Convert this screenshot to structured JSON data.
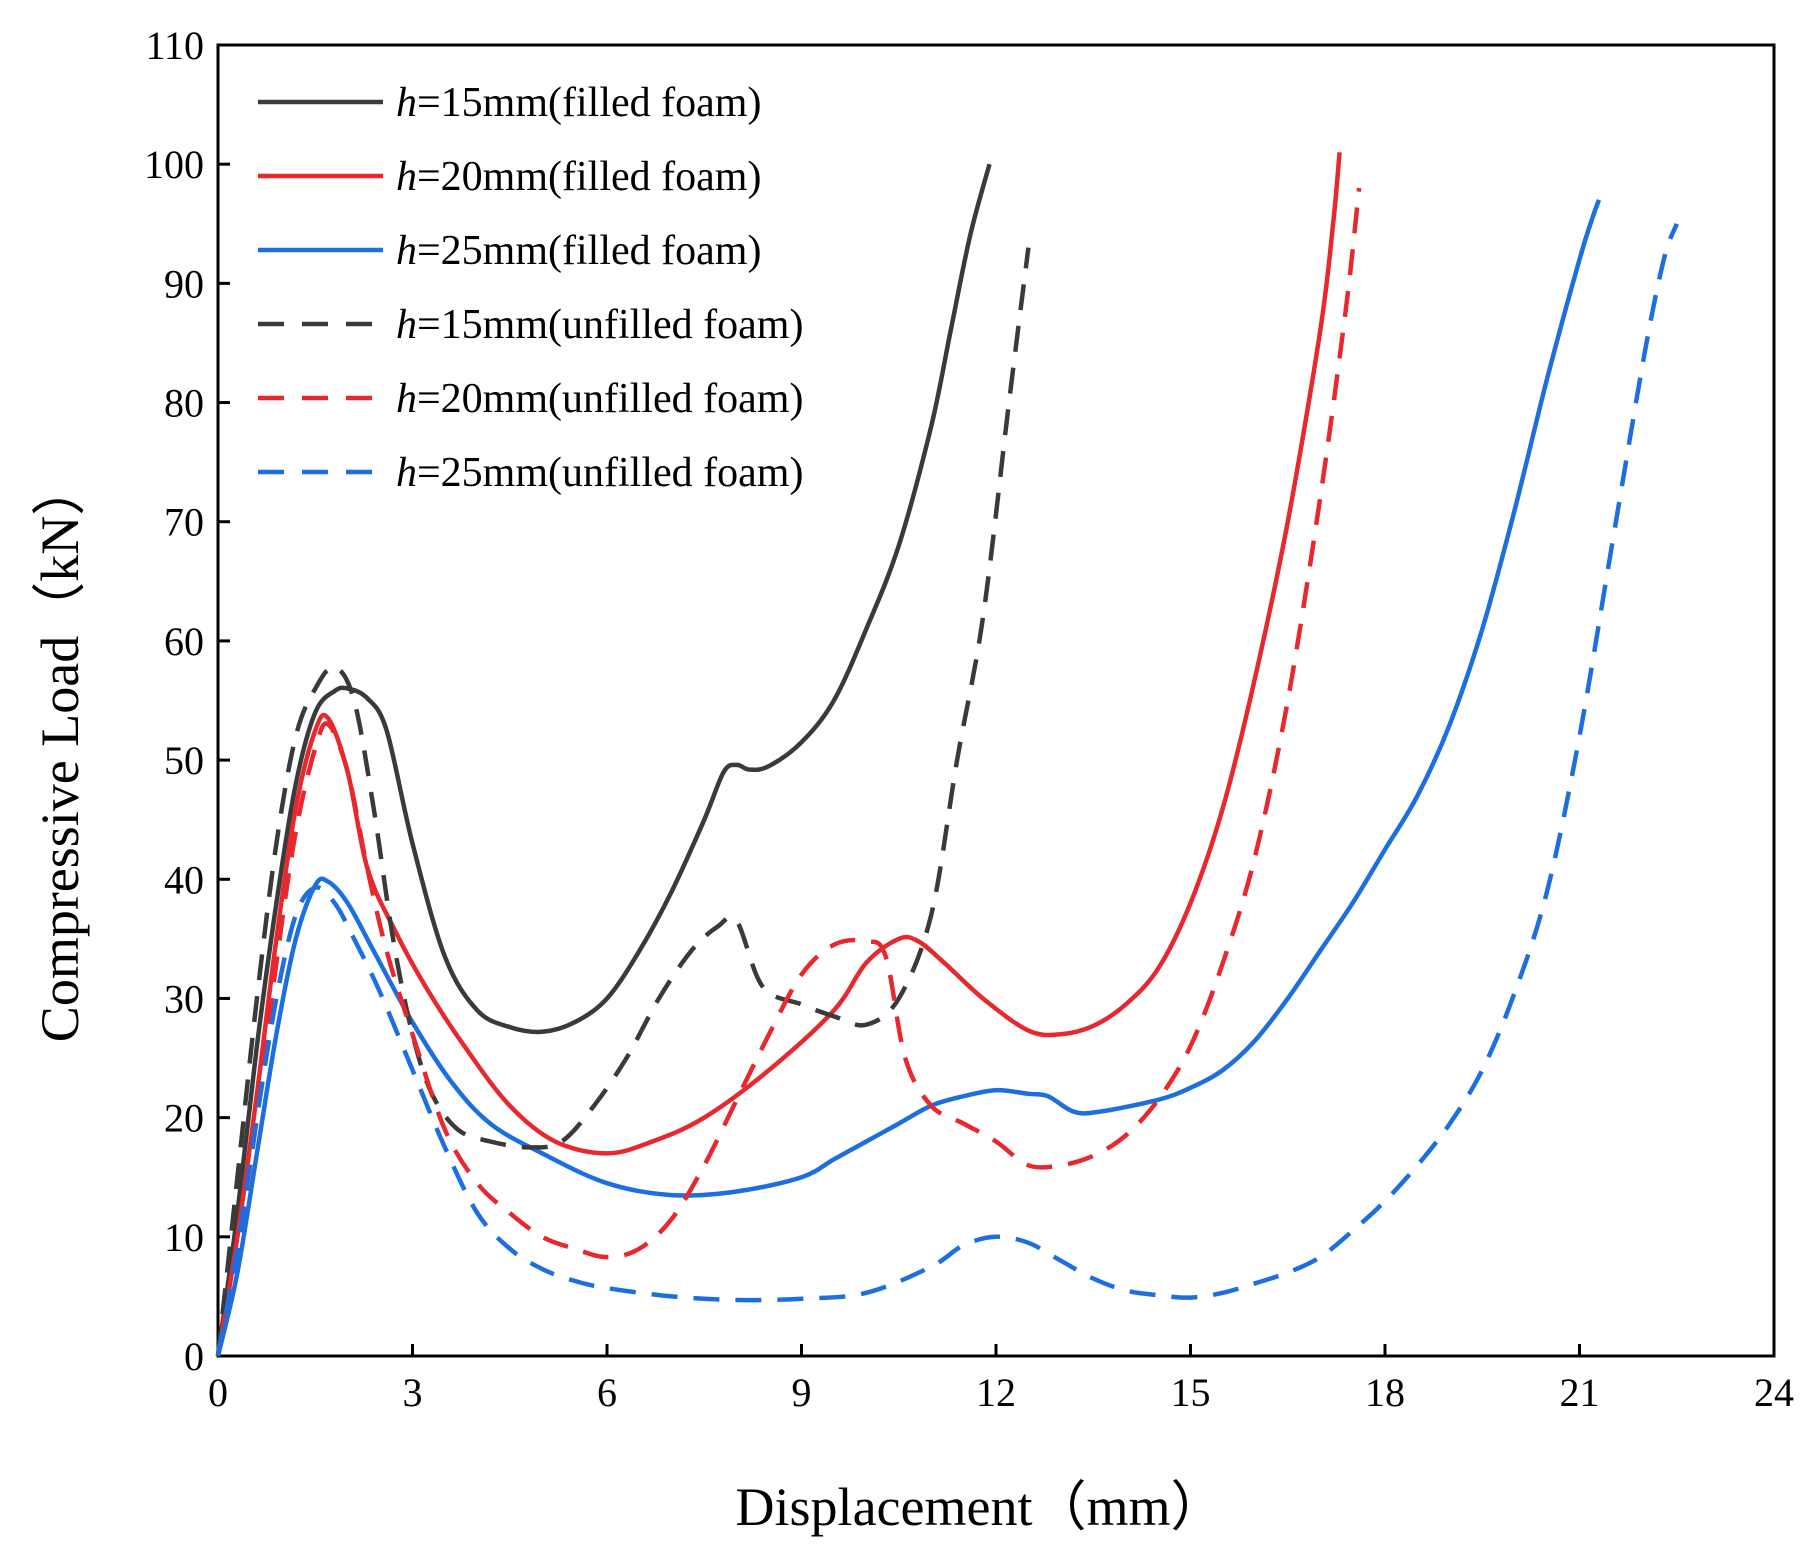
{
  "chart_data": {
    "type": "line",
    "title": "",
    "xlabel": "Displacement（mm）",
    "ylabel": "Compressive Load（kN）",
    "xlim": [
      0,
      24
    ],
    "ylim": [
      0,
      110
    ],
    "xticks": [
      0,
      3,
      6,
      9,
      12,
      15,
      18,
      21,
      24
    ],
    "yticks": [
      0,
      10,
      20,
      30,
      40,
      50,
      60,
      70,
      80,
      90,
      100,
      110
    ],
    "grid": false,
    "legend_position": "top-left",
    "series": [
      {
        "name": "h=15mm(filled foam)",
        "legend_var": "h",
        "legend_rest": "=15mm(filled foam)",
        "color": "#3a3a3a",
        "dash": "solid",
        "x": [
          0,
          0.3,
          0.6,
          0.9,
          1.2,
          1.5,
          1.8,
          2.0,
          2.3,
          2.6,
          3.0,
          3.5,
          4.0,
          4.5,
          5.0,
          5.5,
          6.0,
          6.5,
          7.0,
          7.5,
          7.8,
          8.0,
          8.2,
          8.5,
          9.0,
          9.5,
          10.0,
          10.5,
          11.0,
          11.3,
          11.6,
          11.9
        ],
        "y": [
          0,
          12,
          26,
          38,
          48,
          54,
          55.8,
          56,
          55.2,
          52.5,
          43,
          33.5,
          29,
          27.6,
          27.2,
          28,
          30,
          34,
          39,
          45,
          49,
          49.6,
          49.2,
          49.5,
          51.5,
          55,
          61,
          68,
          78,
          86,
          94,
          100
        ]
      },
      {
        "name": "h=20mm(filled foam)",
        "legend_var": "h",
        "legend_rest": "=20mm(filled foam)",
        "color": "#e8282f",
        "dash": "solid",
        "x": [
          0,
          0.3,
          0.6,
          0.9,
          1.2,
          1.5,
          1.7,
          2.0,
          2.3,
          2.7,
          3.2,
          3.8,
          4.5,
          5.2,
          6.0,
          6.7,
          7.5,
          8.5,
          9.5,
          10.0,
          10.5,
          10.8,
          11.2,
          11.8,
          12.5,
          13.0,
          13.5,
          14.0,
          14.5,
          15.0,
          15.5,
          16.0,
          16.5,
          17.0,
          17.2,
          17.3
        ],
        "y": [
          0,
          10,
          22,
          35,
          46,
          52.5,
          53.5,
          49,
          41,
          36,
          31,
          26,
          21,
          18,
          17,
          18,
          20,
          24,
          29,
          33,
          35,
          34.8,
          33,
          30,
          27.3,
          27,
          27.7,
          29.5,
          32.5,
          38,
          46,
          57,
          70,
          86,
          95,
          101
        ]
      },
      {
        "name": "h=25mm(filled foam)",
        "legend_var": "h",
        "legend_rest": "=25mm(filled foam)",
        "color": "#1d6fe0",
        "dash": "solid",
        "x": [
          0,
          0.3,
          0.6,
          0.9,
          1.2,
          1.5,
          1.7,
          2.0,
          2.4,
          3.0,
          3.6,
          4.2,
          5.0,
          6.0,
          7.0,
          8.0,
          9.0,
          9.5,
          10.0,
          10.5,
          11.0,
          11.5,
          12.0,
          12.5,
          12.8,
          13.2,
          13.6,
          14.5,
          15.0,
          15.5,
          16.0,
          16.5,
          17.0,
          17.5,
          18.0,
          18.5,
          19.0,
          19.5,
          20.0,
          20.5,
          21.0,
          21.2,
          21.3
        ],
        "y": [
          0,
          7,
          17,
          27,
          35,
          39.5,
          39.8,
          38,
          34,
          28,
          23,
          19.5,
          17,
          14.5,
          13.5,
          13.8,
          15,
          16.5,
          18,
          19.5,
          21,
          21.8,
          22.3,
          22,
          21.8,
          20.5,
          20.5,
          21.5,
          22.5,
          24,
          26.5,
          30,
          34,
          38,
          42.5,
          47,
          53,
          61,
          71,
          82,
          92,
          95.5,
          97
        ]
      },
      {
        "name": "h=15mm(unfilled foam)",
        "legend_var": "h",
        "legend_rest": "=15mm(unfilled foam)",
        "color": "#3a3a3a",
        "dash": "dashed",
        "x": [
          0,
          0.3,
          0.6,
          0.9,
          1.2,
          1.5,
          1.8,
          2.1,
          2.4,
          2.7,
          3.0,
          3.3,
          3.7,
          4.2,
          4.8,
          5.3,
          5.8,
          6.3,
          6.8,
          7.3,
          7.7,
          8.0,
          8.4,
          9.0,
          9.5,
          10.0,
          10.5,
          11.0,
          11.4,
          11.8,
          12.2,
          12.5
        ],
        "y": [
          0,
          15,
          30,
          43,
          52,
          56,
          57.8,
          55,
          46,
          35,
          27,
          22,
          19,
          18,
          17.5,
          18,
          21,
          25,
          30,
          34,
          36,
          36.5,
          31,
          29.5,
          28.5,
          27.8,
          30,
          37,
          50,
          62,
          80,
          93
        ]
      },
      {
        "name": "h=20mm(unfilled foam)",
        "legend_var": "h",
        "legend_rest": "=20mm(unfilled foam)",
        "color": "#e8282f",
        "dash": "dashed",
        "x": [
          0,
          0.3,
          0.6,
          0.9,
          1.2,
          1.5,
          1.7,
          2.0,
          2.3,
          2.6,
          3.0,
          3.5,
          4.0,
          4.5,
          5.0,
          5.5,
          6.0,
          6.5,
          7.0,
          7.5,
          8.0,
          8.5,
          9.0,
          9.5,
          10.0,
          10.3,
          10.6,
          11.0,
          11.5,
          12.0,
          12.5,
          13.0,
          13.5,
          14.0,
          14.5,
          15.0,
          15.5,
          16.0,
          16.5,
          17.0,
          17.4,
          17.6
        ],
        "y": [
          0,
          9,
          20,
          33,
          44,
          51,
          53,
          49,
          41,
          34,
          27,
          19,
          14.5,
          12,
          10,
          9,
          8.3,
          9,
          11.5,
          16,
          21.5,
          27,
          32,
          34.5,
          34.8,
          33.5,
          25,
          21,
          19.5,
          18,
          16,
          16,
          16.8,
          18.5,
          21.5,
          26,
          33,
          42,
          55,
          72,
          88,
          98
        ]
      },
      {
        "name": "h=25mm(unfilled foam)",
        "legend_var": "h",
        "legend_rest": "=25mm(unfilled foam)",
        "color": "#1d6fe0",
        "dash": "dashed",
        "x": [
          0,
          0.3,
          0.6,
          0.9,
          1.2,
          1.5,
          1.8,
          2.1,
          2.5,
          3.0,
          3.5,
          4.0,
          4.5,
          5.0,
          5.5,
          6.0,
          7.0,
          8.0,
          9.0,
          10.0,
          11.0,
          11.5,
          12.0,
          12.5,
          13.0,
          13.5,
          14.0,
          14.5,
          15.0,
          15.5,
          16.0,
          16.5,
          17.0,
          17.5,
          18.0,
          18.5,
          19.0,
          19.5,
          20.0,
          20.5,
          21.0,
          21.5,
          22.0,
          22.3,
          22.5
        ],
        "y": [
          0,
          9,
          20,
          30,
          37,
          39.3,
          38,
          35,
          30.5,
          24,
          17.5,
          12,
          9,
          7.3,
          6.3,
          5.7,
          5,
          4.7,
          4.8,
          5.3,
          7.5,
          9.3,
          10,
          9.5,
          8,
          6.5,
          5.5,
          5.1,
          4.9,
          5.3,
          6.1,
          7,
          8.3,
          10.5,
          13,
          16,
          19.5,
          24,
          30.5,
          39,
          52,
          68,
          84,
          92,
          95
        ]
      }
    ]
  }
}
